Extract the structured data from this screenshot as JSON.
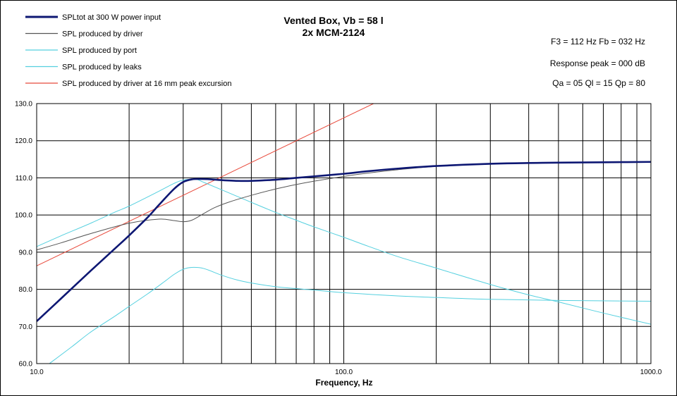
{
  "chart_data": {
    "type": "line",
    "title": "Vented Box, Vb = 58 l",
    "subtitle": "2x MCM-2124",
    "xlabel": "Frequency, Hz",
    "ylabel": "",
    "xscale": "log",
    "xlim": [
      10,
      1000
    ],
    "ylim": [
      60,
      130
    ],
    "grid": true,
    "legend": "top-left",
    "x_tick_labels": [
      "10.0",
      "100.0",
      "1000.0"
    ],
    "x_tick_values": [
      10,
      100,
      1000
    ],
    "y_ticks": [
      60,
      70,
      80,
      90,
      100,
      110,
      120,
      130
    ],
    "y_tick_labels": [
      "60.0",
      "70.0",
      "80.0",
      "90.0",
      "100.0",
      "110.0",
      "120.0",
      "130.0"
    ],
    "annotations": [
      "F3 = 112 Hz  Fb = 032 Hz",
      "Response peak = 000 dB",
      "Qa = 05  Ql = 15  Qp = 80"
    ],
    "series": [
      {
        "name": "SPLtot at 300 W power input",
        "color": "#0d1773",
        "x": [
          10,
          12,
          15,
          18,
          20,
          23,
          25,
          28,
          30,
          32,
          34,
          37,
          40,
          45,
          50,
          60,
          70,
          80,
          100,
          120,
          150,
          200,
          300,
          400,
          500,
          700,
          1000
        ],
        "y": [
          71.4,
          77.5,
          85.0,
          91.0,
          94.5,
          99.4,
          102.7,
          107.0,
          108.9,
          109.6,
          109.7,
          109.6,
          109.4,
          109.2,
          109.2,
          109.5,
          110.0,
          110.4,
          111.1,
          111.8,
          112.5,
          113.2,
          113.8,
          114.0,
          114.1,
          114.2,
          114.3
        ]
      },
      {
        "name": "SPL produced  by driver",
        "color": "#555555",
        "x": [
          10,
          12,
          15,
          20,
          25,
          28,
          30,
          32,
          35,
          38,
          42,
          50,
          60,
          70,
          80,
          100,
          120,
          150,
          200,
          300,
          500,
          1000
        ],
        "y": [
          90.6,
          92.5,
          95.0,
          97.8,
          98.9,
          98.5,
          98.2,
          98.6,
          100.4,
          102.0,
          103.4,
          105.3,
          107.0,
          108.2,
          109.1,
          110.4,
          111.3,
          112.2,
          113.1,
          113.8,
          114.1,
          114.3
        ]
      },
      {
        "name": "SPL produced  by port",
        "color": "#55d0df",
        "x": [
          11,
          13,
          15,
          18,
          20,
          23,
          26,
          28,
          30,
          32,
          35,
          40,
          45,
          50,
          60,
          70,
          80,
          100,
          150,
          200,
          300,
          500,
          1000
        ],
        "y": [
          60.0,
          64.5,
          68.5,
          72.8,
          75.4,
          78.8,
          82.0,
          84.0,
          85.4,
          85.9,
          85.6,
          83.8,
          82.5,
          81.7,
          80.7,
          80.2,
          79.8,
          79.1,
          78.2,
          77.8,
          77.3,
          77.0,
          76.8
        ]
      },
      {
        "name": "SPL produced  by leaks",
        "color": "#55d0df",
        "x": [
          10,
          12,
          15,
          18,
          20,
          25,
          28,
          30,
          33,
          35,
          40,
          50,
          60,
          70,
          80,
          100,
          120,
          150,
          200,
          300,
          400,
          500,
          700,
          1000
        ],
        "y": [
          91.5,
          94.4,
          97.8,
          100.8,
          102.4,
          106.4,
          108.5,
          109.4,
          109.6,
          108.8,
          106.8,
          103.4,
          100.7,
          98.6,
          96.8,
          94.0,
          91.6,
          88.8,
          85.7,
          81.3,
          78.5,
          76.6,
          73.6,
          70.6
        ]
      },
      {
        "name": "SPL produced  by driver at 16 mm peak excursion",
        "color": "#e84a3c",
        "x": [
          10,
          125
        ],
        "y": [
          86.3,
          130
        ]
      }
    ]
  }
}
